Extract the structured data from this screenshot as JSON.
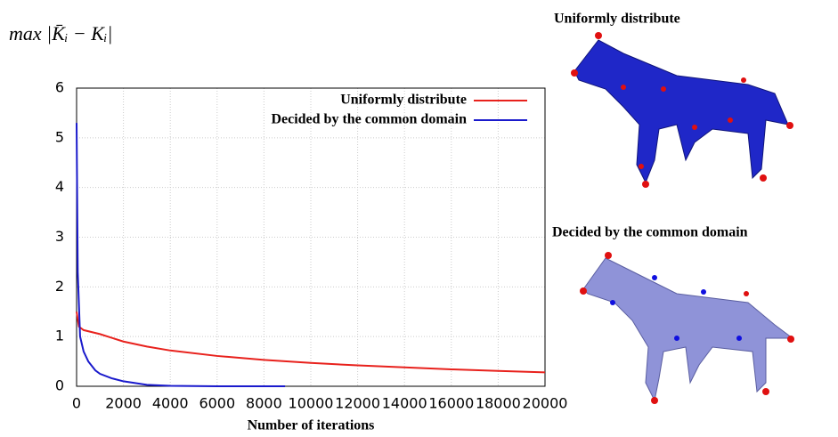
{
  "chart_data": {
    "type": "line",
    "y_label": "max |K̄ᵢ − Kᵢ|",
    "x_label": "Number of iterations",
    "xlim": [
      0,
      20000
    ],
    "xticks": [
      0,
      2000,
      4000,
      6000,
      8000,
      10000,
      12000,
      14000,
      16000,
      18000,
      20000
    ],
    "ylim": [
      0,
      6
    ],
    "yticks": [
      0,
      1,
      2,
      3,
      4,
      5,
      6
    ],
    "grid": true,
    "legend": "upper-right",
    "series": [
      {
        "name": "Uniformly distribute",
        "color": "#e8211c",
        "x": [
          0,
          100,
          300,
          1000,
          2000,
          3000,
          4000,
          6000,
          8000,
          10000,
          12000,
          14000,
          16000,
          18000,
          20000
        ],
        "values": [
          1.5,
          1.2,
          1.13,
          1.05,
          0.9,
          0.8,
          0.72,
          0.61,
          0.53,
          0.47,
          0.42,
          0.38,
          0.34,
          0.31,
          0.28
        ]
      },
      {
        "name": "Decided by the common domain",
        "color": "#1a1acc",
        "x": [
          0,
          50,
          150,
          300,
          500,
          800,
          1000,
          1500,
          2000,
          3000,
          4000,
          5000,
          6000,
          8900
        ],
        "values": [
          5.3,
          2.3,
          1.0,
          0.7,
          0.5,
          0.32,
          0.25,
          0.16,
          0.1,
          0.03,
          0.01,
          0.005,
          0,
          0
        ]
      }
    ]
  },
  "images": [
    {
      "label": "Uniformly distribute"
    },
    {
      "label": "Decided by the common domain"
    }
  ]
}
